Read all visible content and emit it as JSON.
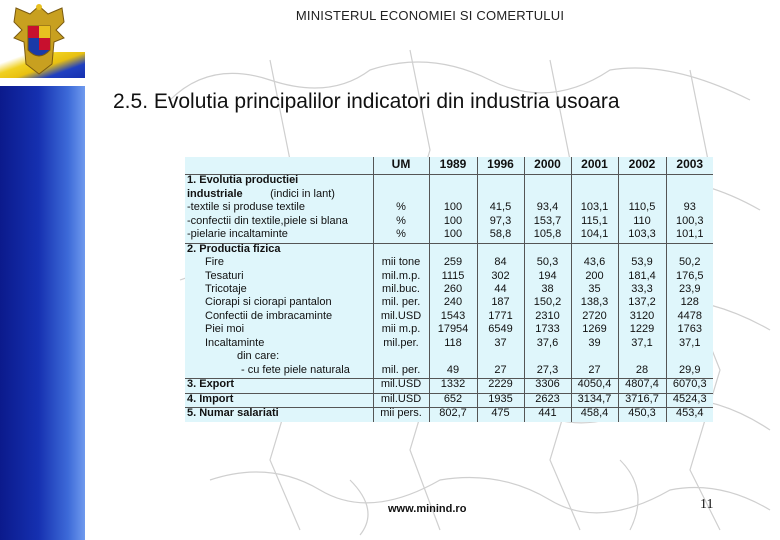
{
  "header": {
    "ministry": "MINISTERUL ECONOMIEI SI COMERTULUI"
  },
  "title": "2.5. Evolutia principalilor indicatori din industria usoara",
  "table": {
    "columns": [
      "UM",
      "1989",
      "1996",
      "2000",
      "2001",
      "2002",
      "2003"
    ],
    "section1": {
      "title_line1": "1. Evolutia productiei",
      "title_line2": "industriale",
      "note": "(indici in lant)"
    },
    "rows1": [
      {
        "label": "-textile si produse textile",
        "um": "%",
        "values": [
          "100",
          "41,5",
          "93,4",
          "103,1",
          "110,5",
          "93"
        ]
      },
      {
        "label": "-confectii din textile,piele si blana",
        "um": "%",
        "values": [
          "100",
          "97,3",
          "153,7",
          "115,1",
          "110",
          "100,3"
        ]
      },
      {
        "label": "-pielarie incaltaminte",
        "um": "%",
        "values": [
          "100",
          "58,8",
          "105,8",
          "104,1",
          "103,3",
          "101,1"
        ]
      }
    ],
    "section2": {
      "title": "2. Productia fizica"
    },
    "rows2": [
      {
        "label": "Fire",
        "um": "mii tone",
        "values": [
          "259",
          "84",
          "50,3",
          "43,6",
          "53,9",
          "50,2"
        ]
      },
      {
        "label": "Tesaturi",
        "um": "mil.m.p.",
        "values": [
          "1115",
          "302",
          "194",
          "200",
          "181,4",
          "176,5"
        ]
      },
      {
        "label": "Tricotaje",
        "um": "mil.buc.",
        "values": [
          "260",
          "44",
          "38",
          "35",
          "33,3",
          "23,9"
        ]
      },
      {
        "label": "Ciorapi si ciorapi pantalon",
        "um": "mil. per.",
        "values": [
          "240",
          "187",
          "150,2",
          "138,3",
          "137,2",
          "128"
        ]
      },
      {
        "label": "Confectii de imbracaminte",
        "um": "mil.USD",
        "values": [
          "1543",
          "1771",
          "2310",
          "2720",
          "3120",
          "4478"
        ]
      },
      {
        "label": "Piei moi",
        "um": "mii m.p.",
        "values": [
          "17954",
          "6549",
          "1733",
          "1269",
          "1229",
          "1763"
        ]
      },
      {
        "label": "Incaltaminte",
        "um": "mil.per.",
        "values": [
          "118",
          "37",
          "37,6",
          "39",
          "37,1",
          "37,1"
        ]
      }
    ],
    "din_care": "din care:",
    "row_cu_fete": {
      "label": "- cu fete piele naturala",
      "um": "mil. per.",
      "values": [
        "49",
        "27",
        "27,3",
        "27",
        "28",
        "29,9"
      ]
    },
    "rows3": [
      {
        "label": "3. Export",
        "um": "mil.USD",
        "values": [
          "1332",
          "2229",
          "3306",
          "4050,4",
          "4807,4",
          "6070,3"
        ]
      },
      {
        "label": "4. Import",
        "um": "mil.USD",
        "values": [
          "652",
          "1935",
          "2623",
          "3134,7",
          "3716,7",
          "4524,3"
        ]
      },
      {
        "label": "5. Numar salariati",
        "um": "mii pers.",
        "values": [
          "802,7",
          "475",
          "441",
          "458,4",
          "450,3",
          "453,4"
        ]
      }
    ]
  },
  "footer": {
    "website": "www.minind.ro",
    "slide_number": "11"
  },
  "colors": {
    "sidebar": "#1530b0",
    "table_bg": "#dff6fb",
    "stripe_yellow": "#f0d020"
  },
  "icons": {
    "emblem": "romanian-coat-of-arms-icon",
    "background": "europe-map-outline"
  }
}
